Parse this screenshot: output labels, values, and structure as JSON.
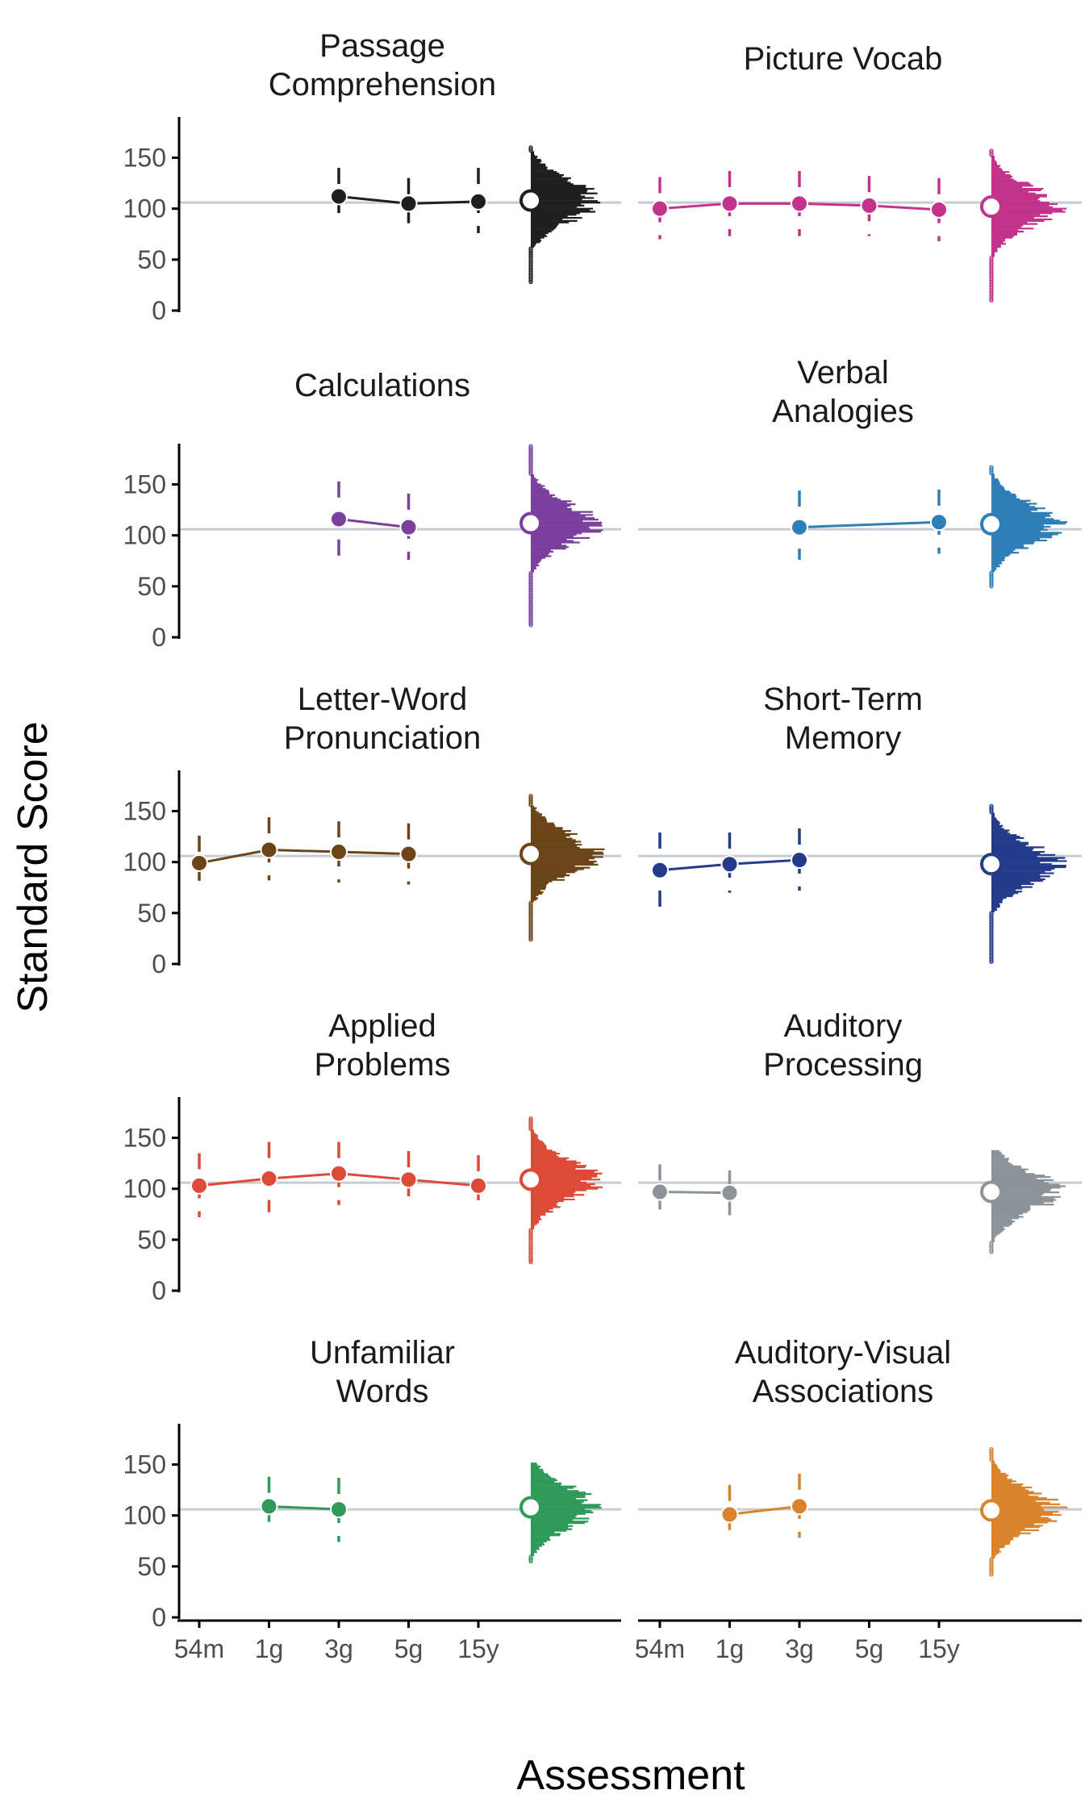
{
  "chart_data": {
    "type": "line",
    "ylabel": "Standard Score",
    "xlabel": "Assessment",
    "categories": [
      "54m",
      "1g",
      "3g",
      "5g",
      "15y"
    ],
    "ylim": [
      0,
      190
    ],
    "yticks": [
      0,
      50,
      100,
      150
    ],
    "reference_line": 106,
    "grid": false,
    "panels": [
      {
        "title": "Passage\nComprehension",
        "color": "#1f1f1f",
        "points": [
          {
            "x": "3g",
            "y": 112,
            "lo": 85,
            "hi": 140
          },
          {
            "x": "5g",
            "y": 105,
            "lo": 80,
            "hi": 130
          },
          {
            "x": "15y",
            "y": 107,
            "lo": 76,
            "hi": 140
          }
        ],
        "overall_mean": 108,
        "dist_range": [
          28,
          160
        ]
      },
      {
        "title": "Picture Vocab",
        "color": "#c2338c",
        "points": [
          {
            "x": "54m",
            "y": 100,
            "lo": 70,
            "hi": 131
          },
          {
            "x": "1g",
            "y": 105,
            "lo": 73,
            "hi": 137
          },
          {
            "x": "3g",
            "y": 105,
            "lo": 73,
            "hi": 137
          },
          {
            "x": "5g",
            "y": 103,
            "lo": 73,
            "hi": 132
          },
          {
            "x": "15y",
            "y": 99,
            "lo": 68,
            "hi": 130
          }
        ],
        "overall_mean": 102,
        "dist_range": [
          10,
          158
        ]
      },
      {
        "title": "Calculations",
        "color": "#7b3f9e",
        "points": [
          {
            "x": "3g",
            "y": 116,
            "lo": 80,
            "hi": 153
          },
          {
            "x": "5g",
            "y": 108,
            "lo": 76,
            "hi": 141
          }
        ],
        "overall_mean": 112,
        "dist_range": [
          12,
          188
        ]
      },
      {
        "title": "Verbal\nAnalogies",
        "color": "#2e7fb8",
        "points": [
          {
            "x": "3g",
            "y": 108,
            "lo": 76,
            "hi": 144
          },
          {
            "x": "15y",
            "y": 113,
            "lo": 82,
            "hi": 145
          }
        ],
        "overall_mean": 111,
        "dist_range": [
          50,
          168
        ]
      },
      {
        "title": "Letter-Word\nPronunciation",
        "color": "#6b4418",
        "points": [
          {
            "x": "54m",
            "y": 99,
            "lo": 73,
            "hi": 126
          },
          {
            "x": "1g",
            "y": 112,
            "lo": 82,
            "hi": 144
          },
          {
            "x": "3g",
            "y": 110,
            "lo": 80,
            "hi": 140
          },
          {
            "x": "5g",
            "y": 108,
            "lo": 78,
            "hi": 138
          }
        ],
        "overall_mean": 108,
        "dist_range": [
          24,
          166
        ]
      },
      {
        "title": "Short-Term\nMemory",
        "color": "#243b8a",
        "points": [
          {
            "x": "54m",
            "y": 92,
            "lo": 56,
            "hi": 129
          },
          {
            "x": "1g",
            "y": 98,
            "lo": 70,
            "hi": 129
          },
          {
            "x": "3g",
            "y": 102,
            "lo": 72,
            "hi": 133
          }
        ],
        "overall_mean": 98,
        "dist_range": [
          2,
          156
        ]
      },
      {
        "title": "Applied\nProblems",
        "color": "#dd4a37",
        "points": [
          {
            "x": "54m",
            "y": 103,
            "lo": 72,
            "hi": 135
          },
          {
            "x": "1g",
            "y": 110,
            "lo": 77,
            "hi": 146
          },
          {
            "x": "3g",
            "y": 115,
            "lo": 84,
            "hi": 146
          },
          {
            "x": "5g",
            "y": 109,
            "lo": 83,
            "hi": 137
          },
          {
            "x": "15y",
            "y": 103,
            "lo": 76,
            "hi": 133
          }
        ],
        "overall_mean": 109,
        "dist_range": [
          28,
          170
        ]
      },
      {
        "title": "Auditory\nProcessing",
        "color": "#8c9399",
        "points": [
          {
            "x": "54m",
            "y": 97,
            "lo": 71,
            "hi": 124
          },
          {
            "x": "1g",
            "y": 96,
            "lo": 74,
            "hi": 118
          }
        ],
        "overall_mean": 97,
        "dist_range": [
          38,
          138
        ]
      },
      {
        "title": "Unfamiliar\nWords",
        "color": "#2f9a5a",
        "points": [
          {
            "x": "1g",
            "y": 109,
            "lo": 82,
            "hi": 138
          },
          {
            "x": "3g",
            "y": 106,
            "lo": 74,
            "hi": 137
          }
        ],
        "overall_mean": 108,
        "dist_range": [
          55,
          152
        ]
      },
      {
        "title": "Auditory-Visual\nAssociations",
        "color": "#d9832c",
        "points": [
          {
            "x": "1g",
            "y": 101,
            "lo": 74,
            "hi": 130
          },
          {
            "x": "3g",
            "y": 109,
            "lo": 78,
            "hi": 141
          }
        ],
        "overall_mean": 105,
        "dist_range": [
          42,
          165
        ]
      }
    ]
  }
}
